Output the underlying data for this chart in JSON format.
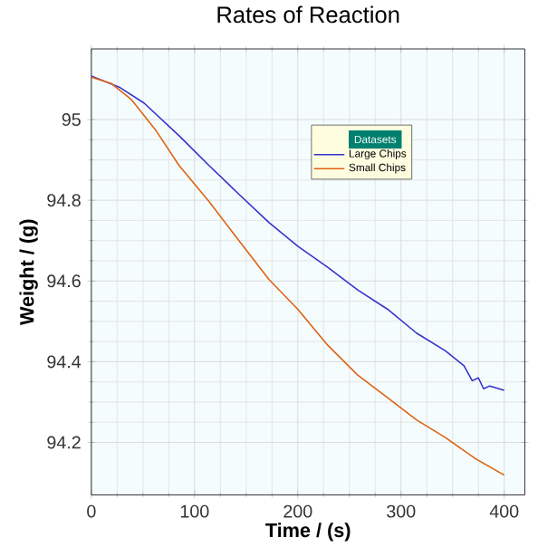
{
  "chart_data": {
    "type": "line",
    "title": "Rates of Reaction",
    "xlabel": "Time / (s)",
    "ylabel": "Weight / (g)",
    "legend_title": "Datasets",
    "xlim": [
      0,
      420
    ],
    "ylim": [
      94.07,
      95.175
    ],
    "xticks": [
      0,
      100,
      200,
      300,
      400
    ],
    "yticks": [
      94.2,
      94.4,
      94.6,
      94.8,
      95
    ],
    "grid": true,
    "legend": "top right",
    "series": [
      {
        "name": "Large Chips",
        "color": "#3333cc",
        "x": [
          0,
          28,
          51,
          85,
          114,
          143,
          172,
          200,
          229,
          258,
          287,
          315,
          343,
          361,
          369,
          375,
          380,
          386,
          400
        ],
        "values": [
          95.108,
          95.079,
          95.041,
          94.96,
          94.886,
          94.815,
          94.745,
          94.686,
          94.634,
          94.578,
          94.53,
          94.471,
          94.427,
          94.39,
          94.353,
          94.36,
          94.333,
          94.34,
          94.329
        ]
      },
      {
        "name": "Small Chips",
        "color": "#e06010",
        "x": [
          0,
          19,
          39,
          62,
          85,
          114,
          143,
          172,
          200,
          229,
          258,
          287,
          315,
          343,
          372,
          400
        ],
        "values": [
          95.105,
          95.09,
          95.049,
          94.975,
          94.886,
          94.797,
          94.7,
          94.604,
          94.53,
          94.441,
          94.367,
          94.311,
          94.256,
          94.212,
          94.16,
          94.119
        ]
      }
    ]
  }
}
